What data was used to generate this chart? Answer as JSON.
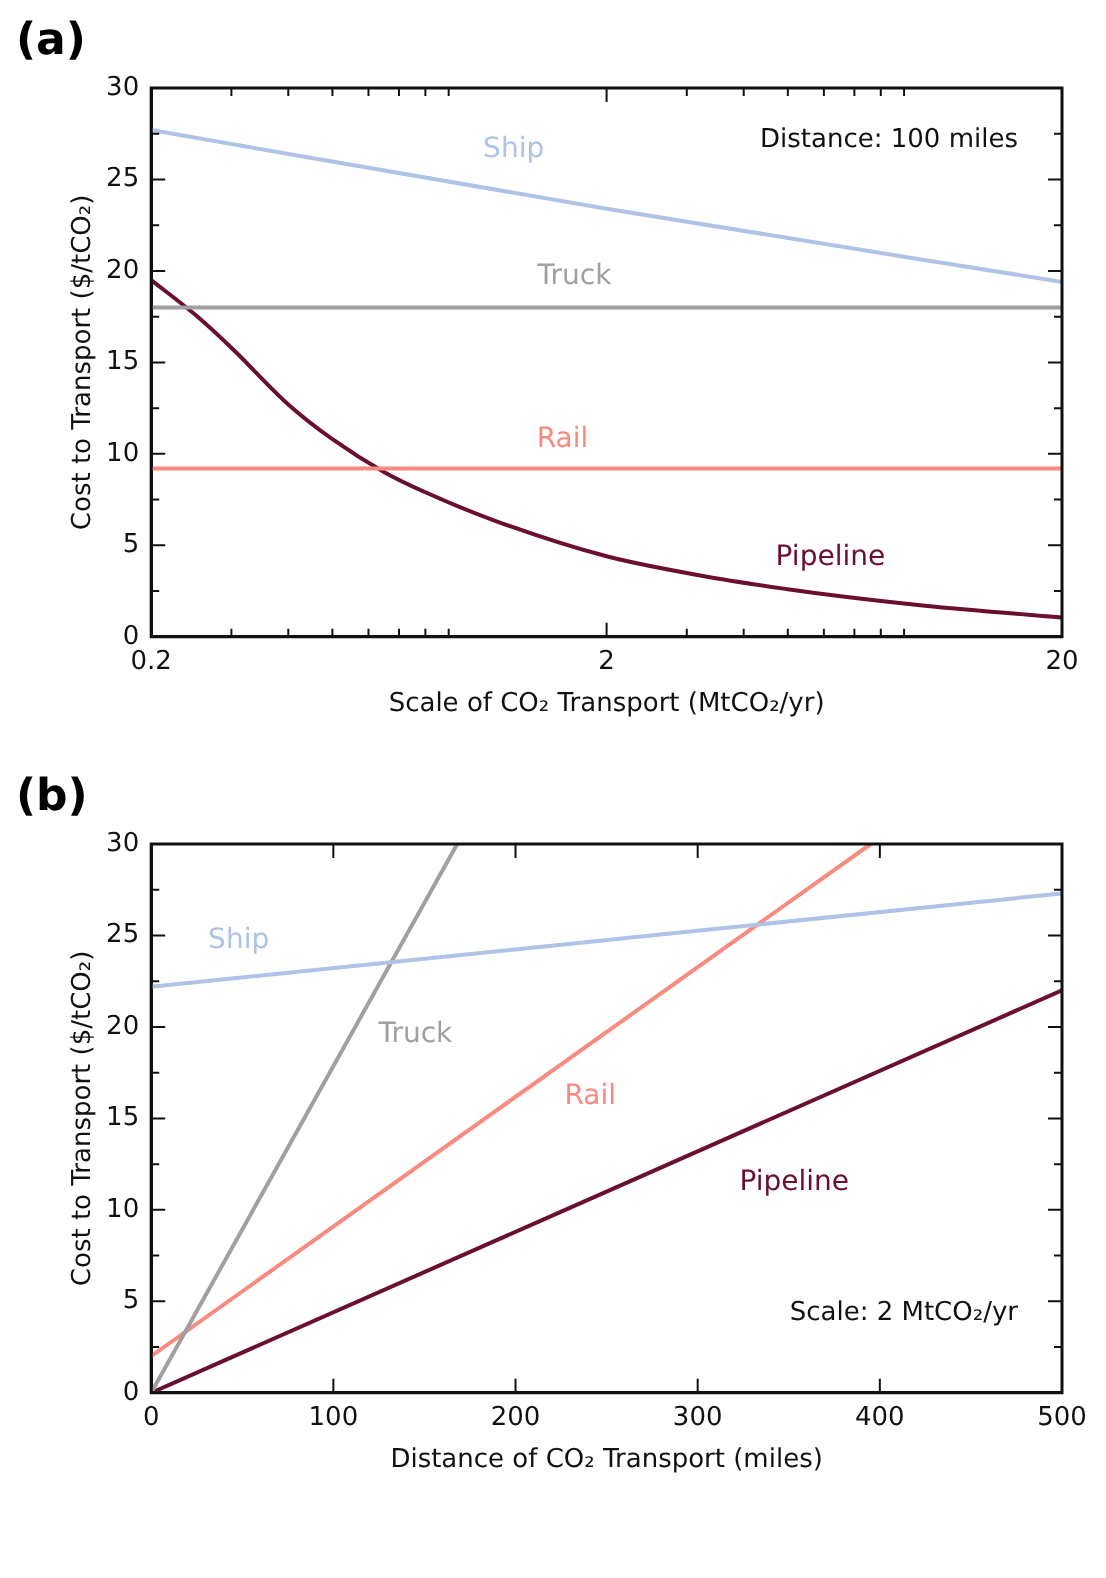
{
  "chart_data": [
    {
      "type": "line",
      "title": "(a)",
      "xlabel": "Scale of CO₂ Transport (MtCO₂/yr)",
      "ylabel": "Cost to Transport ($/tCO₂)",
      "log": "x",
      "xlim": [
        0.2,
        20
      ],
      "ylim": [
        0,
        30
      ],
      "xticks": [
        0.2,
        {
          "value": 0.3,
          "label": null
        },
        {
          "value": 0.4,
          "label": null
        },
        {
          "value": 0.5,
          "label": null
        },
        {
          "value": 0.6,
          "label": null
        },
        {
          "value": 0.7,
          "label": null
        },
        {
          "value": 0.8,
          "label": null
        },
        {
          "value": 0.9,
          "label": null
        },
        2,
        {
          "value": 3,
          "label": null
        },
        {
          "value": 4,
          "label": null
        },
        {
          "value": 5,
          "label": null
        },
        {
          "value": 6,
          "label": null
        },
        {
          "value": 7,
          "label": null
        },
        {
          "value": 8,
          "label": null
        },
        {
          "value": 9,
          "label": null
        },
        20
      ],
      "yticks": [
        0,
        {
          "value": 2.5,
          "label": null
        },
        5,
        {
          "value": 7.5,
          "label": null
        },
        10,
        {
          "value": 12.5,
          "label": null
        },
        15,
        {
          "value": 17.5,
          "label": null
        },
        20,
        {
          "value": 22.5,
          "label": null
        },
        25,
        {
          "value": 27.5,
          "label": null
        },
        30
      ],
      "grid": false,
      "legend": false,
      "marker": "none",
      "line_style": "solid",
      "annotations": [
        "Distance: 100 miles"
      ],
      "series": [
        {
          "name": "Ship",
          "color": "#aec3e6",
          "x": [
            0.2,
            2,
            20
          ],
          "values": [
            27.7,
            23.4,
            19.4
          ]
        },
        {
          "name": "Truck",
          "color": "#a0a0a0",
          "x": [
            0.2,
            20
          ],
          "values": [
            18,
            18
          ]
        },
        {
          "name": "Rail",
          "color": "#f98a80",
          "x": [
            0.2,
            20
          ],
          "values": [
            9.2,
            9.2
          ]
        },
        {
          "name": "Pipeline",
          "color": "#6b0f2f",
          "x": [
            0.2,
            0.25,
            0.3,
            0.4,
            0.5,
            0.65,
            0.8,
            1.15,
            2,
            3.3,
            5,
            6.6,
            10,
            20
          ],
          "values": [
            19.5,
            17.6,
            15.8,
            12.7,
            10.8,
            9.0,
            7.9,
            6.3,
            4.4,
            3.3,
            2.6,
            2.2,
            1.7,
            1.05
          ]
        }
      ]
    },
    {
      "type": "line",
      "title": "(b)",
      "xlabel": "Distance of CO₂ Transport (miles)",
      "ylabel": "Cost to Transport ($/tCO₂)",
      "xlim": [
        0,
        500
      ],
      "ylim": [
        0,
        30
      ],
      "xticks": [
        0,
        100,
        200,
        300,
        400,
        500
      ],
      "yticks": [
        0,
        {
          "value": 2.5,
          "label": null
        },
        5,
        {
          "value": 7.5,
          "label": null
        },
        10,
        {
          "value": 12.5,
          "label": null
        },
        15,
        {
          "value": 17.5,
          "label": null
        },
        20,
        {
          "value": 22.5,
          "label": null
        },
        25,
        {
          "value": 27.5,
          "label": null
        },
        30
      ],
      "grid": false,
      "legend": false,
      "marker": "none",
      "line_style": "solid",
      "annotations": [
        "Scale: 2 MtCO₂/yr"
      ],
      "series": [
        {
          "name": "Ship",
          "color": "#aec3e6",
          "x": [
            0,
            500
          ],
          "values": [
            22.2,
            27.3
          ]
        },
        {
          "name": "Truck",
          "color": "#a0a0a0",
          "x": [
            0,
            168
          ],
          "values": [
            0,
            30
          ]
        },
        {
          "name": "Rail",
          "color": "#f98a80",
          "x": [
            0,
            395
          ],
          "values": [
            2,
            30
          ]
        },
        {
          "name": "Pipeline",
          "color": "#6b0f2f",
          "x": [
            0,
            500
          ],
          "values": [
            0,
            22
          ]
        }
      ]
    }
  ]
}
